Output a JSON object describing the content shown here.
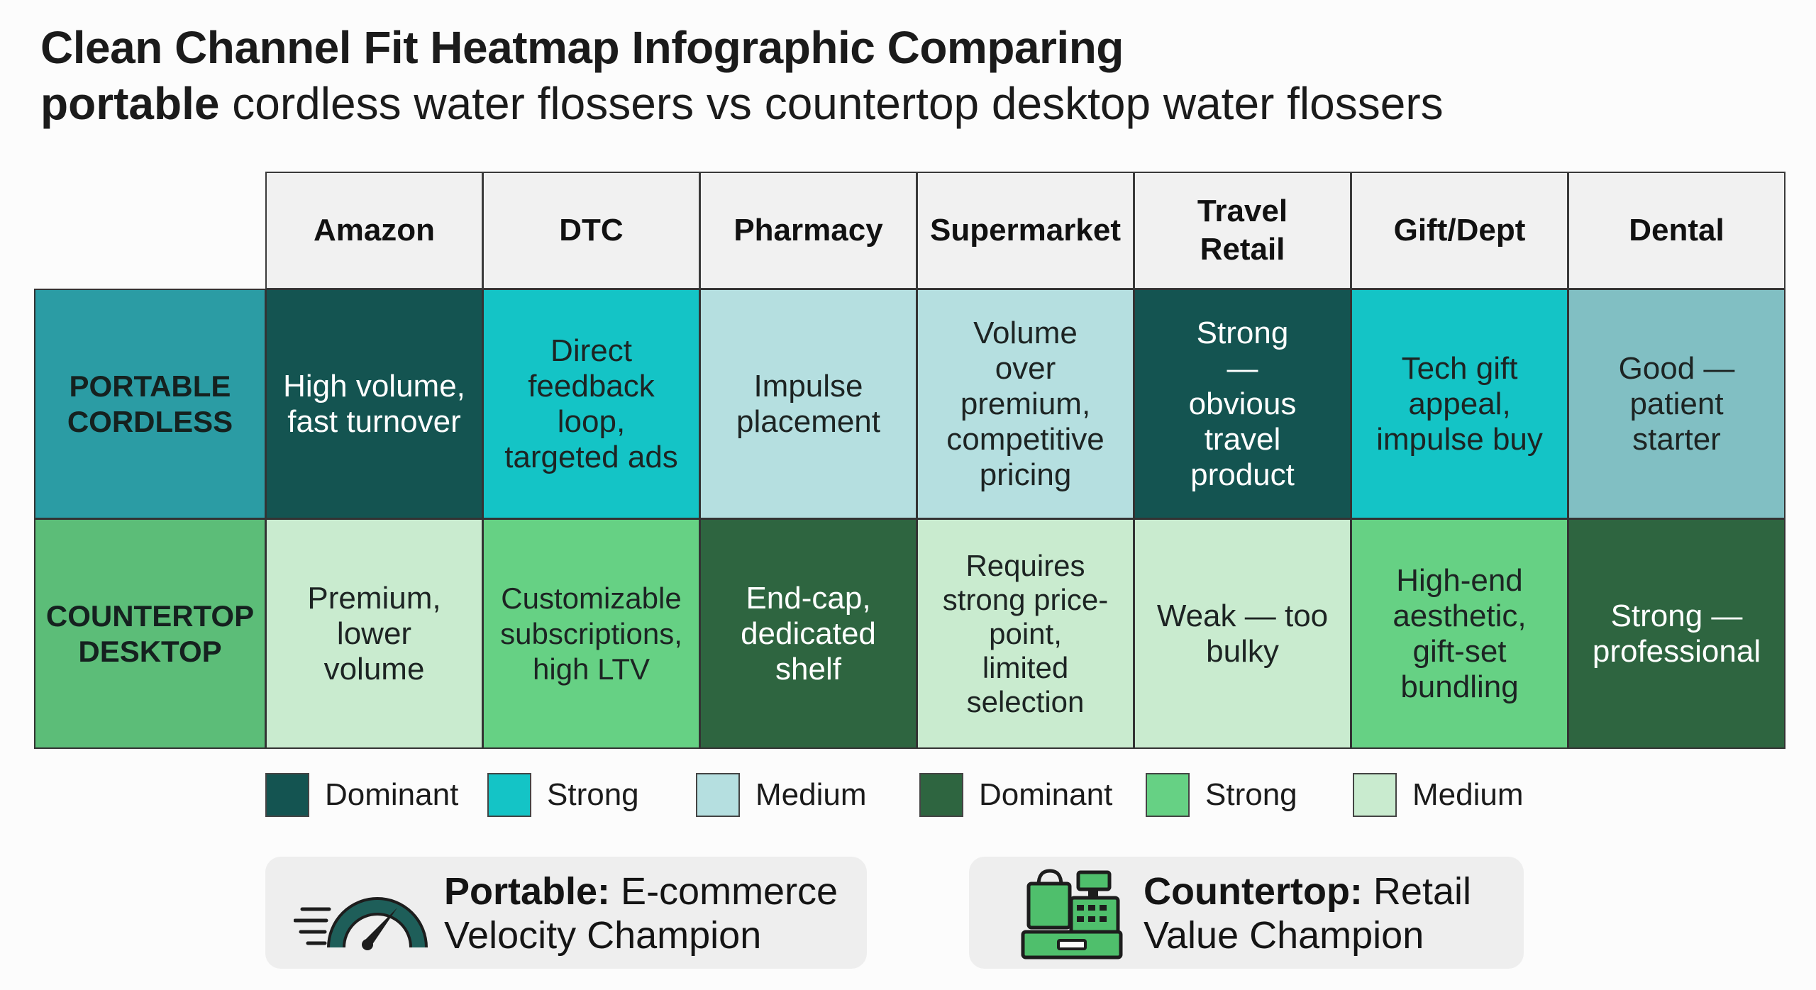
{
  "title": {
    "line1": "Clean Channel Fit Heatmap Infographic Comparing",
    "line2_bold": "portable",
    "line2_rest": " cordless water flossers vs countertop desktop water flossers"
  },
  "columns": [
    "Amazon",
    "DTC",
    "Pharmacy",
    "Supermarket",
    "Travel Retail",
    "Gift/Dept",
    "Dental"
  ],
  "rows": [
    {
      "label": "PORTABLE CORDLESS",
      "color": "#2b9ca4",
      "cells": [
        {
          "text": "High volume, fast turnover",
          "level": "Dominant",
          "color": "#145451",
          "dark": true
        },
        {
          "text": "Direct feedback loop, targeted ads",
          "level": "Strong",
          "color": "#14c4c6",
          "dark": false
        },
        {
          "text": "Impulse placement",
          "level": "Medium",
          "color": "#b5dfe0",
          "dark": false
        },
        {
          "text": "Volume over premium, competitive pricing",
          "level": "Medium",
          "color": "#b5dfe0",
          "dark": false
        },
        {
          "text": "Strong — obvious travel product",
          "level": "Dominant",
          "color": "#145451",
          "dark": true
        },
        {
          "text": "Tech gift appeal, impulse buy",
          "level": "Strong",
          "color": "#14c4c6",
          "dark": false
        },
        {
          "text": "Good — patient starter",
          "level": "Medium",
          "color": "#81bfc3",
          "dark": false
        }
      ]
    },
    {
      "label": "COUNTERTOP DESKTOP",
      "color": "#5cbd78",
      "cells": [
        {
          "text": "Premium, lower volume",
          "level": "Medium",
          "color": "#c9ebcf",
          "dark": false
        },
        {
          "text": "Customizable subscriptions, high LTV",
          "level": "Strong",
          "color": "#66d184",
          "dark": false
        },
        {
          "text": "End-cap, dedicated shelf",
          "level": "Dominant",
          "color": "#2e6540",
          "dark": true
        },
        {
          "text": "Requires strong price-point, limited selection",
          "level": "Medium",
          "color": "#c9ebcf",
          "dark": false
        },
        {
          "text": "Weak — too bulky",
          "level": "Medium",
          "color": "#c9ebcf",
          "dark": false
        },
        {
          "text": "High-end aesthetic, gift-set bundling",
          "level": "Strong",
          "color": "#66d184",
          "dark": false
        },
        {
          "text": "Strong — professional",
          "level": "Dominant",
          "color": "#2e6540",
          "dark": true
        }
      ]
    }
  ],
  "legend": [
    {
      "label": "Dominant",
      "color": "#145451"
    },
    {
      "label": "Strong",
      "color": "#14c4c6"
    },
    {
      "label": "Medium",
      "color": "#b5dfe0"
    },
    {
      "label": "Dominant",
      "color": "#2e6540"
    },
    {
      "label": "Strong",
      "color": "#66d184"
    },
    {
      "label": "Medium",
      "color": "#c9ebcf"
    }
  ],
  "callouts": [
    {
      "bold": "Portable:",
      "rest": " E-commerce",
      "line2": "Velocity Champion",
      "icon": "speedometer-icon"
    },
    {
      "bold": "Countertop:",
      "rest": " Retail",
      "line2": "Value Champion",
      "icon": "cash-register-icon"
    }
  ],
  "chart_data": {
    "type": "heatmap",
    "title": "Clean Channel Fit Heatmap Infographic Comparing portable cordless water flossers vs countertop desktop water flossers",
    "x": [
      "Amazon",
      "DTC",
      "Pharmacy",
      "Supermarket",
      "Travel Retail",
      "Gift/Dept",
      "Dental"
    ],
    "y": [
      "PORTABLE CORDLESS",
      "COUNTERTOP DESKTOP"
    ],
    "levels": [
      "Dominant",
      "Strong",
      "Medium"
    ],
    "values": [
      [
        "Dominant",
        "Strong",
        "Medium",
        "Medium",
        "Dominant",
        "Strong",
        "Medium"
      ],
      [
        "Medium",
        "Strong",
        "Dominant",
        "Medium",
        "Medium",
        "Strong",
        "Dominant"
      ]
    ]
  }
}
